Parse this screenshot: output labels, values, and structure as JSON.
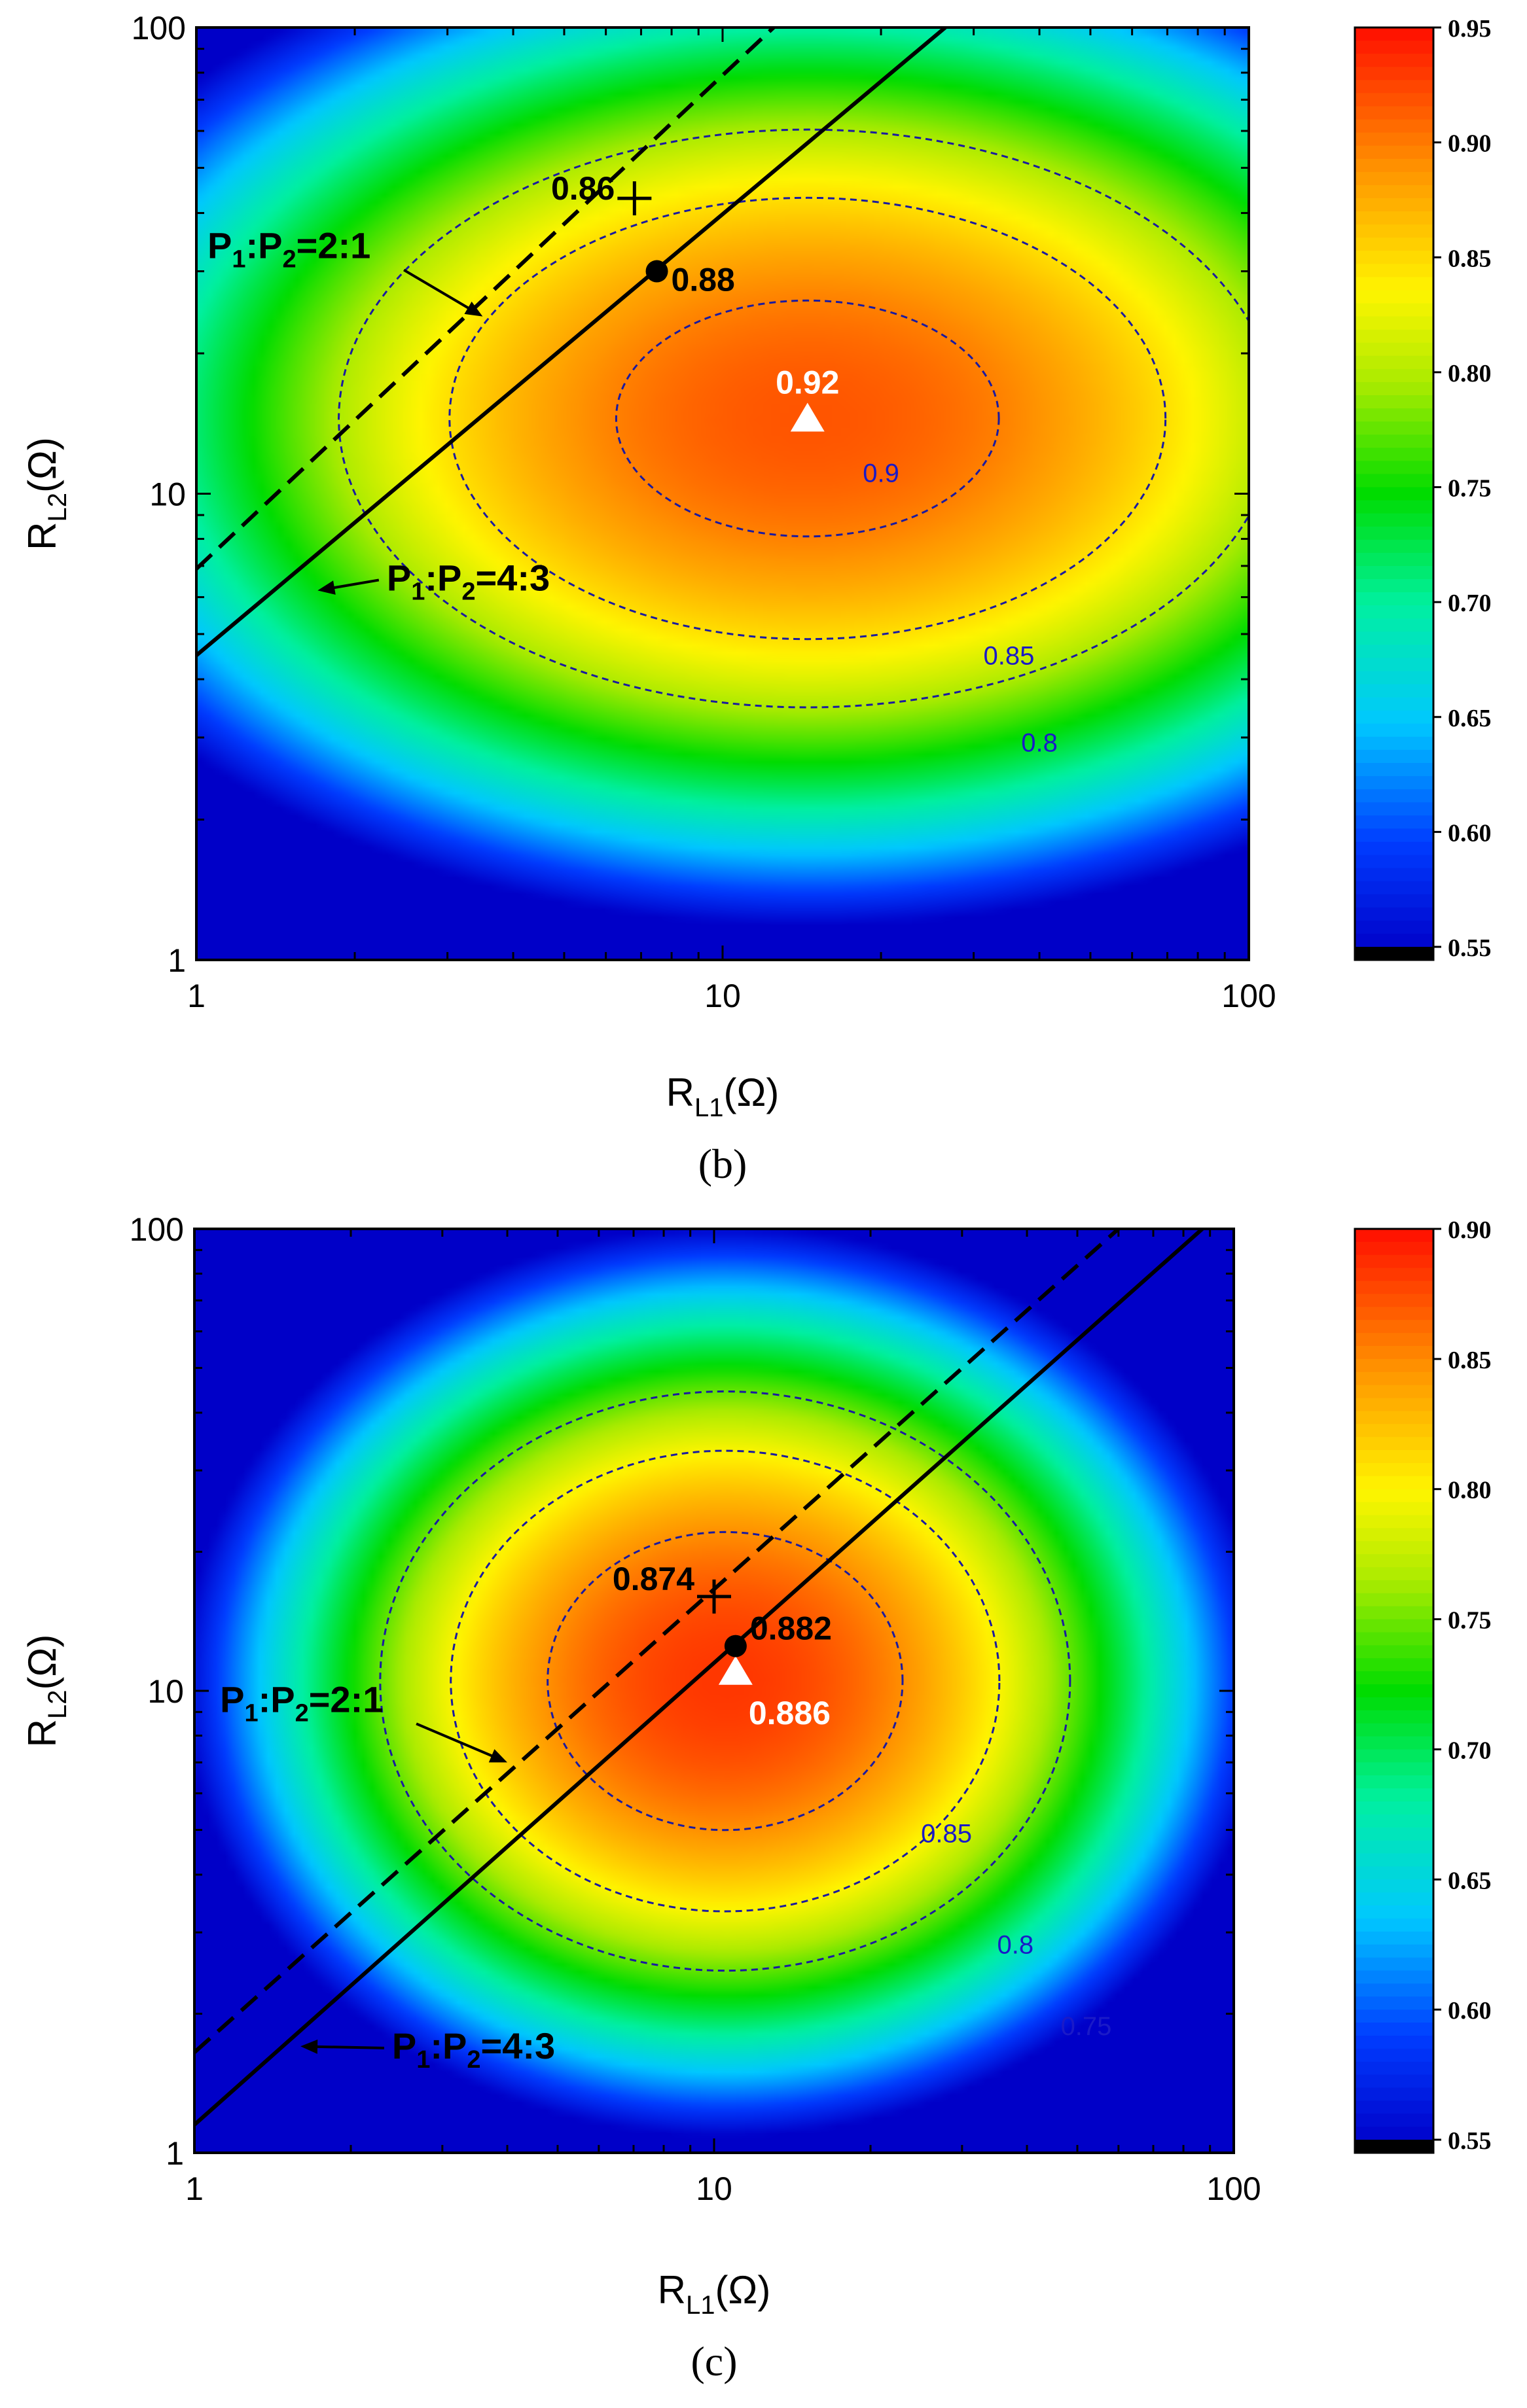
{
  "chart_data": [
    {
      "panel": "(b)",
      "type": "heatmap",
      "subtype": "contour-map",
      "xlabel_main": "R",
      "xlabel_sub": "L1",
      "xlabel_unit": "(Ω)",
      "ylabel_main": "R",
      "ylabel_sub": "L2",
      "ylabel_unit": "(Ω)",
      "xscale": "log",
      "yscale": "log",
      "xlim": [
        1,
        100
      ],
      "ylim": [
        1,
        100
      ],
      "xticks": [
        "1",
        "10",
        "100"
      ],
      "yticks": [
        "1",
        "10",
        "100"
      ],
      "colorbar": {
        "range": [
          0.55,
          0.95
        ],
        "ticks": [
          "0.55",
          "0.60",
          "0.65",
          "0.70",
          "0.75",
          "0.80",
          "0.85",
          "0.90",
          "0.95"
        ]
      },
      "field": {
        "peak": [
          14.5,
          14.5
        ],
        "peak_value": 0.92,
        "sx": 1.15,
        "sy": 0.8,
        "k": 0.2
      },
      "contour_lines": [
        {
          "level": 0.8,
          "label": "0.8",
          "label_at": [
            40,
            2.8
          ]
        },
        {
          "level": 0.85,
          "label": "0.85",
          "label_at": [
            35,
            4.3
          ]
        },
        {
          "level": 0.9,
          "label": "0.9",
          "label_at": [
            20,
            10.6
          ]
        }
      ],
      "lines": [
        {
          "ratio": "4:3",
          "style": "solid",
          "from": [
            1,
            4.5
          ],
          "to": [
            26.5,
            100
          ]
        },
        {
          "ratio": "2:1",
          "style": "dashed",
          "from": [
            1,
            6.9
          ],
          "to": [
            12.5,
            100
          ]
        }
      ],
      "points": [
        {
          "marker": "triangle",
          "x": 14.5,
          "y": 14.5,
          "label": "0.92",
          "label_color": "#ffffff"
        },
        {
          "marker": "circle",
          "x": 7.5,
          "y": 30,
          "label": "0.88",
          "label_color": "#000000"
        },
        {
          "marker": "plus",
          "x": 6.8,
          "y": 43,
          "label": "0.86",
          "label_color": "#000000"
        }
      ],
      "annotations": [
        {
          "text_main": "P",
          "sub1": "1",
          "mid": ":P",
          "sub2": "2",
          "tail": "=2:1",
          "at": [
            1.05,
            32
          ],
          "arrow_to": [
            3.5,
            24
          ]
        },
        {
          "text_main": "P",
          "sub1": "1",
          "mid": ":P",
          "sub2": "2",
          "tail": "=4:3",
          "at": [
            2.3,
            6.2
          ],
          "arrow_to": [
            1.7,
            6.2
          ]
        }
      ]
    },
    {
      "panel": "(c)",
      "type": "heatmap",
      "subtype": "contour-map",
      "xlabel_main": "R",
      "xlabel_sub": "L1",
      "xlabel_unit": "(Ω)",
      "ylabel_main": "R",
      "ylabel_sub": "L2",
      "ylabel_unit": "(Ω)",
      "xscale": "log",
      "yscale": "log",
      "xlim": [
        1,
        100
      ],
      "ylim": [
        1,
        100
      ],
      "xticks": [
        "1",
        "10",
        "100"
      ],
      "yticks": [
        "1",
        "10",
        "100"
      ],
      "colorbar": {
        "range": [
          0.55,
          0.9
        ],
        "ticks": [
          "0.55",
          "0.60",
          "0.65",
          "0.70",
          "0.75",
          "0.80",
          "0.85",
          "0.90"
        ]
      },
      "field": {
        "peak": [
          10.5,
          10.5
        ],
        "peak_value": 0.886,
        "sx": 0.9,
        "sy": 0.85,
        "k": 0.25
      },
      "contour_lines": [
        {
          "level": 0.75,
          "label": "0.75",
          "label_at": [
            52,
            1.8
          ]
        },
        {
          "level": 0.8,
          "label": "0.8",
          "label_at": [
            38,
            2.7
          ]
        },
        {
          "level": 0.85,
          "label": "0.85",
          "label_at": [
            28,
            4.7
          ]
        }
      ],
      "lines": [
        {
          "ratio": "4:3",
          "style": "solid",
          "from": [
            1,
            1.15
          ],
          "to": [
            87,
            100
          ]
        },
        {
          "ratio": "2:1",
          "style": "dashed",
          "from": [
            1,
            1.65
          ],
          "to": [
            60,
            100
          ]
        }
      ],
      "points": [
        {
          "marker": "triangle",
          "x": 11,
          "y": 11,
          "label": "0.886",
          "label_color": "#ffffff"
        },
        {
          "marker": "circle",
          "x": 11,
          "y": 12.5,
          "label": "0.882",
          "label_color": "#000000"
        },
        {
          "marker": "plus",
          "x": 10,
          "y": 16,
          "label": "0.874",
          "label_color": "#000000"
        }
      ],
      "annotations": [
        {
          "text_main": "P",
          "sub1": "1",
          "mid": ":P",
          "sub2": "2",
          "tail": "=2:1",
          "at": [
            1.12,
            9.0
          ],
          "arrow_to": [
            4.0,
            7.0
          ]
        },
        {
          "text_main": "P",
          "sub1": "1",
          "mid": ":P",
          "sub2": "2",
          "tail": "=4:3",
          "at": [
            2.4,
            1.6
          ],
          "arrow_to": [
            1.6,
            1.7
          ]
        }
      ]
    }
  ]
}
